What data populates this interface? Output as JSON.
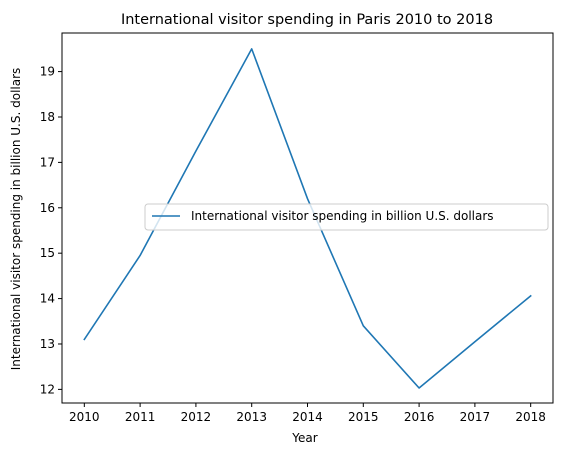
{
  "chart_data": {
    "type": "line",
    "title": "International visitor spending in Paris 2010 to 2018",
    "xlabel": "Year",
    "ylabel": "International visitor spending in billion U.S. dollars",
    "x": [
      2010,
      2011,
      2012,
      2013,
      2014,
      2015,
      2016,
      2017,
      2018
    ],
    "series": [
      {
        "name": "International visitor spending in billion U.S. dollars",
        "values": [
          13.1,
          14.95,
          17.25,
          19.5,
          16.2,
          13.4,
          12.03,
          13.05,
          14.06
        ],
        "color": "#1f77b4"
      }
    ],
    "xlim": [
      2009.6,
      2018.4
    ],
    "ylim": [
      11.7,
      19.85
    ],
    "xticks": [
      "2010",
      "2011",
      "2012",
      "2013",
      "2014",
      "2015",
      "2016",
      "2017",
      "2018"
    ],
    "yticks": [
      12,
      13,
      14,
      15,
      16,
      17,
      18,
      19
    ],
    "grid": false,
    "legend_position": "center-right"
  }
}
